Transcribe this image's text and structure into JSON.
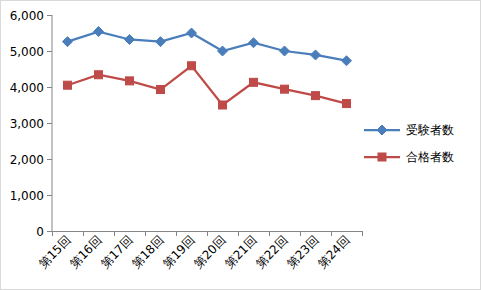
{
  "chart_data": {
    "type": "line",
    "categories": [
      "第15回",
      "第16回",
      "第17回",
      "第18回",
      "第19回",
      "第20回",
      "第21回",
      "第22回",
      "第23回",
      "第24回"
    ],
    "series": [
      {
        "name": "受験者数",
        "color": "#4a7ebb",
        "marker": "diamond",
        "values": [
          5260,
          5540,
          5320,
          5260,
          5500,
          5000,
          5230,
          5000,
          4890,
          4730
        ]
      },
      {
        "name": "合格者数",
        "color": "#be4b48",
        "marker": "square",
        "values": [
          4050,
          4340,
          4170,
          3930,
          4590,
          3500,
          4130,
          3940,
          3760,
          3540
        ]
      }
    ],
    "ylim": [
      0,
      6000
    ],
    "yticks": [
      0,
      {
        "value": 1000,
        "label": "1,000"
      },
      {
        "value": 2000,
        "label": "2,000"
      },
      {
        "value": 3000,
        "label": "3,000"
      },
      {
        "value": 4000,
        "label": "4,000"
      },
      {
        "value": 5000,
        "label": "5,000"
      },
      {
        "value": 6000,
        "label": "6,000"
      }
    ],
    "grid": false,
    "legend": "right"
  }
}
